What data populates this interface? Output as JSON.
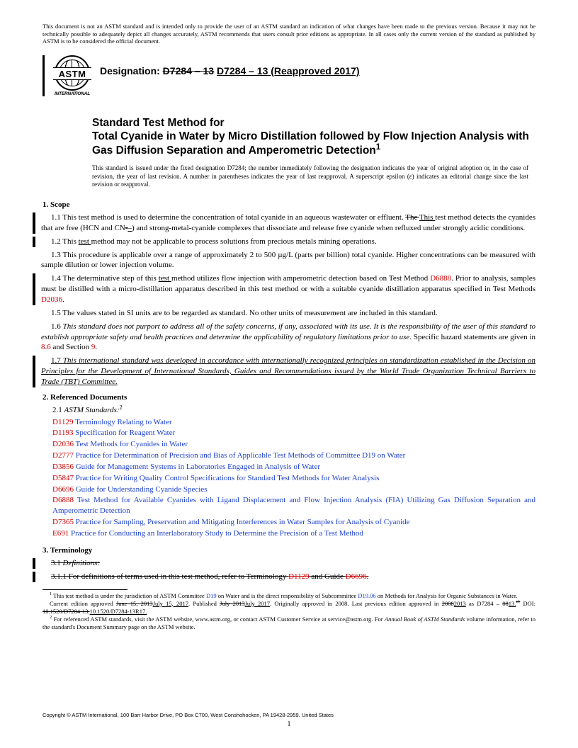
{
  "disclaimer": "This document is not an ASTM standard and is intended only to provide the user of an ASTM standard an indication of what changes have been made to the previous version. Because it may not be technically possible to adequately depict all changes accurately, ASTM recommends that users consult prior editions as appropriate. In all cases only the current version of the standard as published by ASTM is to be considered the official document.",
  "logo": {
    "text": "ASTM",
    "sub": "INTERNATIONAL"
  },
  "designation": {
    "label": "Designation:",
    "old": "D7284 – 13",
    "new": "D7284 – 13 (Reapproved 2017)"
  },
  "title": {
    "line1": "Standard Test Method for",
    "line2": "Total Cyanide in Water by Micro Distillation followed by Flow Injection Analysis with Gas Diffusion Separation and Amperometric Detection",
    "sup": "1"
  },
  "issue_note": "This standard is issued under the fixed designation D7284; the number immediately following the designation indicates the year of original adoption or, in the case of revision, the year of last revision. A number in parentheses indicates the year of last reapproval. A superscript epsilon (ε) indicates an editorial change since the last revision or reapproval.",
  "sections": {
    "s1": {
      "num": "1.",
      "title": "Scope"
    },
    "p11_a": "1.1 This test method is used to determine the concentration of total cyanide in an aqueous wastewater or effluent. ",
    "p11_old": "The ",
    "p11_new": "This ",
    "p11_b": "test method detects the cyanides that are free (HCN and CN",
    "p11_old2": "-",
    "p11_new2": "–",
    "p11_c": ") and strong-metal-cyanide complexes that dissociate and release free cyanide when refluxed under strongly acidic conditions.",
    "p12_a": "1.2 This ",
    "p12_u": "test ",
    "p12_b": "method may not be applicable to process solutions from precious metals mining operations.",
    "p13": "1.3 This procedure is applicable over a range of approximately 2 to 500 µg/L (parts per billion) total cyanide. Higher concentrations can be measured with sample dilution or lower injection volume.",
    "p14_a": "1.4 The determinative step of this ",
    "p14_u": "test ",
    "p14_b": "method utilizes flow injection with amperometric detection based on Test Method ",
    "p14_ref1": "D6888",
    "p14_c": ". Prior to analysis, samples must be distilled with a micro-distillation apparatus described in this test method or with a suitable cyanide distillation apparatus specified in Test Methods ",
    "p14_ref2": "D2036",
    "p14_d": ".",
    "p15": "1.5 The values stated in SI units are to be regarded as standard. No other units of measurement are included in this standard.",
    "p16_a": "1.6 ",
    "p16_i": "This standard does not purport to address all of the safety concerns, if any, associated with its use. It is the responsibility of the user of this standard to establish appropriate safety and health practices and determine the applicability of regulatory limitations prior to use.",
    "p16_b": " Specific hazard statements are given in ",
    "p16_r1": "8.6",
    "p16_c": " and Section ",
    "p16_r2": "9",
    "p16_d": ".",
    "p17_a": "1.7 ",
    "p17_i": "This international standard was developed in accordance with internationally recognized principles on standardization established in the Decision on Principles for the Development of International Standards, Guides and Recommendations issued by the World Trade Organization Technical Barriers to Trade (TBT) Committee.",
    "s2": {
      "num": "2.",
      "title": "Referenced Documents"
    },
    "p21_a": "2.1 ",
    "p21_i": "ASTM Standards:",
    "p21_sup": "2",
    "refs": [
      {
        "code": "D1129",
        "title": "Terminology Relating to Water"
      },
      {
        "code": "D1193",
        "title": "Specification for Reagent Water"
      },
      {
        "code": "D2036",
        "title": "Test Methods for Cyanides in Water"
      },
      {
        "code": "D2777",
        "title": "Practice for Determination of Precision and Bias of Applicable Test Methods of Committee D19 on Water"
      },
      {
        "code": "D3856",
        "title": "Guide for Management Systems in Laboratories Engaged in Analysis of Water"
      },
      {
        "code": "D5847",
        "title": "Practice for Writing Quality Control Specifications for Standard Test Methods for Water Analysis"
      },
      {
        "code": "D6696",
        "title": "Guide for Understanding Cyanide Species"
      },
      {
        "code": "D6888",
        "title": "Test Method for Available Cyanides with Ligand Displacement and Flow Injection Analysis (FIA) Utilizing Gas Diffusion Separation and Amperometric Detection"
      },
      {
        "code": "D7365",
        "title": "Practice for Sampling, Preservation and Mitigating Interferences in Water Samples for Analysis of Cyanide"
      },
      {
        "code": "E691",
        "title": "Practice for Conducting an Interlaboratory Study to Determine the Precision of a Test Method"
      }
    ],
    "s3": {
      "num": "3.",
      "title": "Terminology"
    },
    "p31": "3.1 ",
    "p31_i": "Definitions:",
    "p311_a": "3.1.1 For definitions of terms used in this test method, refer to Terminology ",
    "p311_r1": "D1129",
    "p311_b": " and Guide ",
    "p311_r2": "D6696",
    "p311_c": "."
  },
  "footnotes": {
    "f1_a": " This test method is under the jurisdiction of ASTM Committee ",
    "f1_l1": "D19",
    "f1_b": " on Water and is the direct responsibility of Subcommittee ",
    "f1_l2": "D19.06",
    "f1_c": " on Methods for Analysis for Organic Substances in Water.",
    "f1_line2_a": "Current edition approved ",
    "f1_line2_old1": "June 15, 2013",
    "f1_line2_new1": "July 15, 2017",
    "f1_line2_b": ". Published ",
    "f1_line2_old2": "July 2013",
    "f1_line2_new2": "July 2017",
    "f1_line2_c": ". Originally approved in 2008. Last previous edition approved in ",
    "f1_line2_old3": "2008",
    "f1_line2_new3": "2013",
    "f1_line2_d": " as D7284 – ",
    "f1_line2_old4": "08",
    "f1_line2_new4": "13.",
    "f1_line2_old4b": "ε1",
    "f1_line2_e": " DOI: ",
    "f1_line2_old5": "10.1520/D7284-13.",
    "f1_line2_new5": "10.1520/D7284-13R17.",
    "f2_a": " For referenced ASTM standards, visit the ASTM website, www.astm.org, or contact ASTM Customer Service at service@astm.org. For ",
    "f2_i": "Annual Book of ASTM Standards",
    "f2_b": " volume information, refer to the standard's Document Summary page on the ASTM website."
  },
  "copyright": "Copyright © ASTM International, 100 Barr Harbor Drive, PO Box C700, West Conshohocken, PA 19428-2959. United States",
  "pagenum": "1",
  "colors": {
    "red": "#cc0000",
    "blue": "#1a3fcc"
  }
}
